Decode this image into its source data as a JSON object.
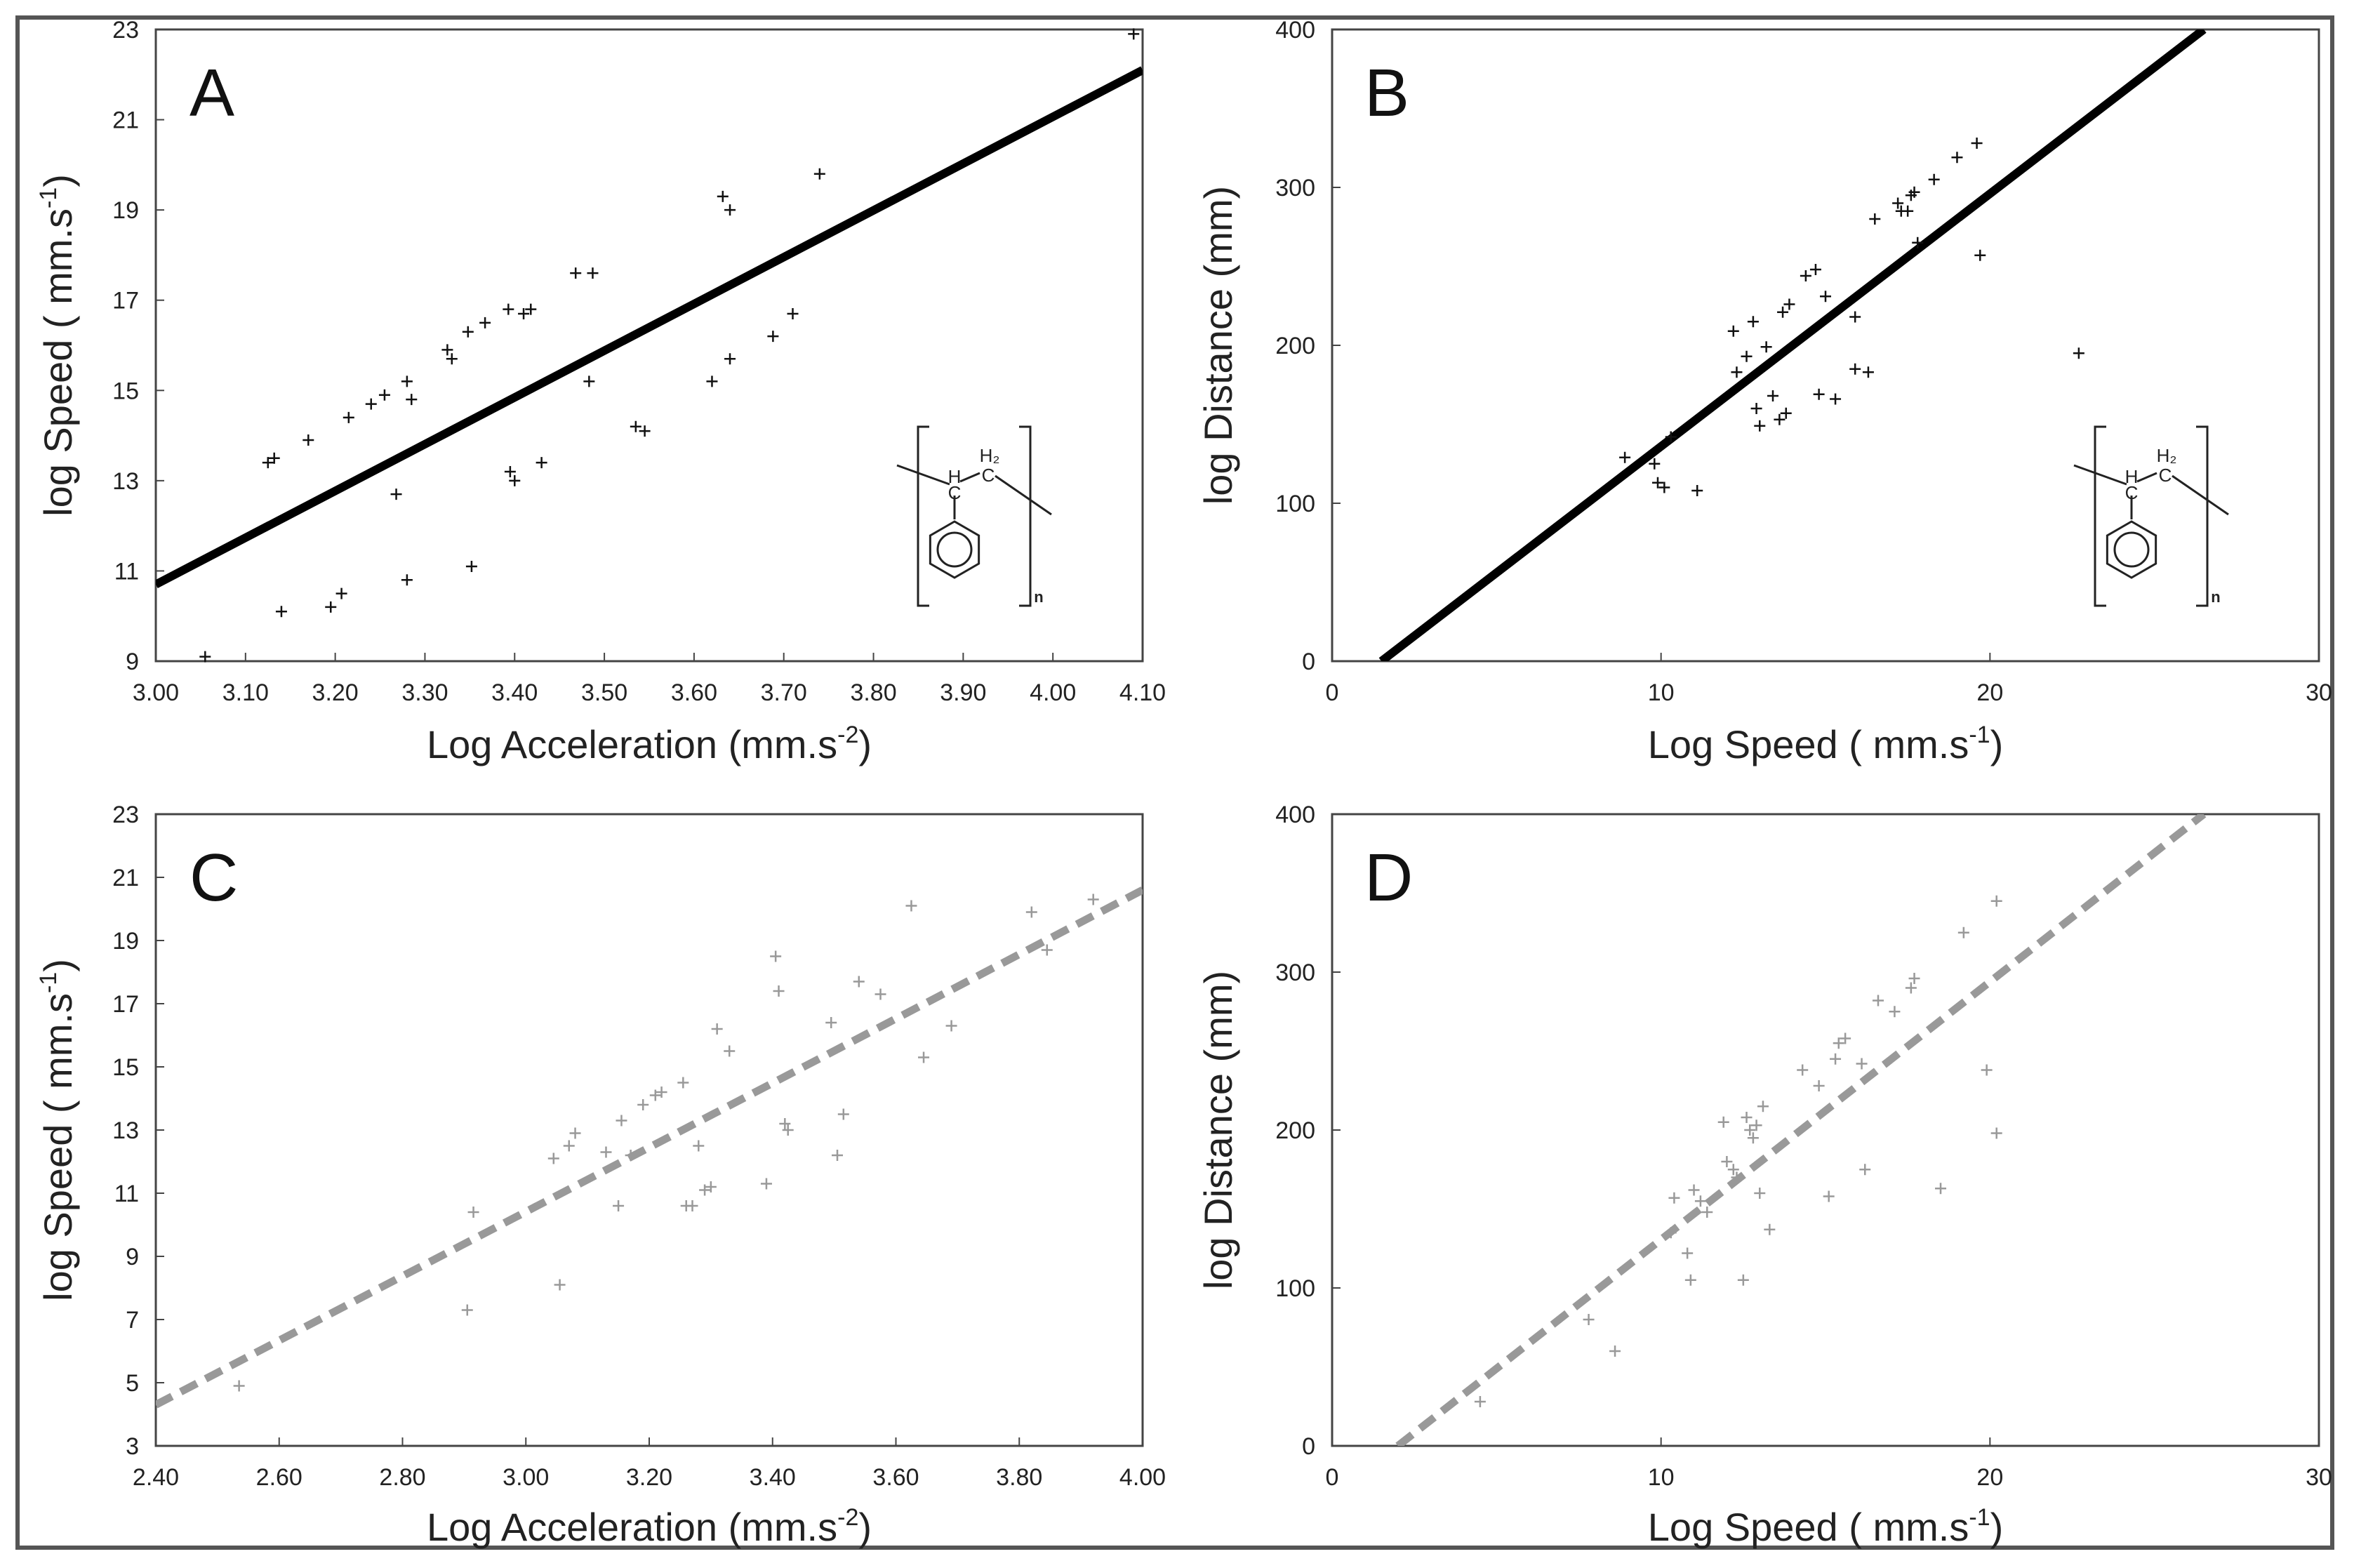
{
  "colors": {
    "solid_fit": "#000000",
    "dashed_fit": "#999999",
    "marker_dark": "#111111",
    "marker_light": "#999999",
    "frame": "#555555"
  },
  "chart_data": [
    {
      "panel": "A",
      "type": "scatter",
      "xlabel": "Log Acceleration (mm.s",
      "xlabel_sup": "-2",
      "xlabel_end": ")",
      "ylabel": "log Speed ( mm.s",
      "ylabel_sup": "-1",
      "ylabel_end": ")",
      "xlim": [
        3.0,
        4.1
      ],
      "ylim": [
        9,
        23
      ],
      "xticks": [
        "3.00",
        "3.10",
        "3.20",
        "3.30",
        "3.40",
        "3.50",
        "3.60",
        "3.70",
        "3.80",
        "3.90",
        "4.00",
        "4.10"
      ],
      "xtick_values": [
        3.0,
        3.1,
        3.2,
        3.3,
        3.4,
        3.5,
        3.6,
        3.7,
        3.8,
        3.9,
        4.0,
        4.1
      ],
      "yticks": [
        "9",
        "11",
        "13",
        "15",
        "17",
        "19",
        "21",
        "23"
      ],
      "ytick_values": [
        9,
        11,
        13,
        15,
        17,
        19,
        21,
        23
      ],
      "marker_color": "#111111",
      "fit": {
        "style": "solid",
        "color": "#000000",
        "x": [
          3.0,
          4.1
        ],
        "y": [
          10.7,
          22.1
        ]
      },
      "inset": "polystyrene",
      "points": [
        [
          3.055,
          9.1
        ],
        [
          3.125,
          13.4
        ],
        [
          3.132,
          13.5
        ],
        [
          3.14,
          10.1
        ],
        [
          3.17,
          13.9
        ],
        [
          3.195,
          10.2
        ],
        [
          3.207,
          10.5
        ],
        [
          3.215,
          14.4
        ],
        [
          3.24,
          14.7
        ],
        [
          3.255,
          14.9
        ],
        [
          3.268,
          12.7
        ],
        [
          3.28,
          15.2
        ],
        [
          3.285,
          14.8
        ],
        [
          3.28,
          10.8
        ],
        [
          3.325,
          15.9
        ],
        [
          3.33,
          15.7
        ],
        [
          3.348,
          16.3
        ],
        [
          3.352,
          11.1
        ],
        [
          3.367,
          16.5
        ],
        [
          3.393,
          16.8
        ],
        [
          3.395,
          13.2
        ],
        [
          3.4,
          13.0
        ],
        [
          3.41,
          16.7
        ],
        [
          3.418,
          16.8
        ],
        [
          3.43,
          13.4
        ],
        [
          3.468,
          17.6
        ],
        [
          3.483,
          15.2
        ],
        [
          3.487,
          17.6
        ],
        [
          3.535,
          14.2
        ],
        [
          3.545,
          14.1
        ],
        [
          3.62,
          15.2
        ],
        [
          3.632,
          19.3
        ],
        [
          3.64,
          19.0
        ],
        [
          3.64,
          15.7
        ],
        [
          3.688,
          16.2
        ],
        [
          3.71,
          16.7
        ],
        [
          3.74,
          19.8
        ],
        [
          4.09,
          22.9
        ]
      ]
    },
    {
      "panel": "B",
      "type": "scatter",
      "xlabel": "Log Speed ( mm.s",
      "xlabel_sup": "-1",
      "xlabel_end": ")",
      "ylabel": "log Distance (mm)",
      "ylabel_sup": "",
      "ylabel_end": "",
      "xlim": [
        0,
        30
      ],
      "ylim": [
        0,
        400
      ],
      "xticks": [
        "0",
        "10",
        "20",
        "30"
      ],
      "xtick_values": [
        0,
        10,
        20,
        30
      ],
      "yticks": [
        "0",
        "100",
        "200",
        "300",
        "400"
      ],
      "ytick_values": [
        0,
        100,
        200,
        300,
        400
      ],
      "marker_color": "#111111",
      "fit": {
        "style": "solid",
        "color": "#000000",
        "x": [
          1.5,
          26.5
        ],
        "y": [
          0,
          400
        ]
      },
      "inset": "polystyrene",
      "points": [
        [
          8.9,
          129
        ],
        [
          9.8,
          125
        ],
        [
          9.9,
          113
        ],
        [
          10.1,
          110
        ],
        [
          10.3,
          142
        ],
        [
          11.1,
          108
        ],
        [
          12.2,
          209
        ],
        [
          12.3,
          183
        ],
        [
          12.6,
          193
        ],
        [
          12.8,
          215
        ],
        [
          12.9,
          160
        ],
        [
          13.0,
          149
        ],
        [
          13.2,
          199
        ],
        [
          13.4,
          168
        ],
        [
          13.6,
          153
        ],
        [
          13.7,
          221
        ],
        [
          13.8,
          157
        ],
        [
          13.9,
          226
        ],
        [
          14.4,
          244
        ],
        [
          14.7,
          248
        ],
        [
          14.8,
          169
        ],
        [
          15.0,
          231
        ],
        [
          15.3,
          166
        ],
        [
          15.9,
          218
        ],
        [
          15.9,
          185
        ],
        [
          16.3,
          183
        ],
        [
          16.5,
          280
        ],
        [
          17.2,
          290
        ],
        [
          17.3,
          285
        ],
        [
          17.5,
          285
        ],
        [
          17.6,
          295
        ],
        [
          17.7,
          297
        ],
        [
          17.8,
          265
        ],
        [
          18.3,
          305
        ],
        [
          19.0,
          319
        ],
        [
          19.6,
          328
        ],
        [
          19.7,
          257
        ],
        [
          22.7,
          195
        ]
      ]
    },
    {
      "panel": "C",
      "type": "scatter",
      "xlabel": "Log Acceleration (mm.s",
      "xlabel_sup": "-2",
      "xlabel_end": ")",
      "ylabel": "log Speed ( mm.s",
      "ylabel_sup": "-1",
      "ylabel_end": ")",
      "xlim": [
        2.4,
        4.0
      ],
      "ylim": [
        3,
        23
      ],
      "xticks": [
        "2.40",
        "2.60",
        "2.80",
        "3.00",
        "3.20",
        "3.40",
        "3.60",
        "3.80",
        "4.00"
      ],
      "xtick_values": [
        2.4,
        2.6,
        2.8,
        3.0,
        3.2,
        3.4,
        3.6,
        3.8,
        4.0
      ],
      "yticks": [
        "3",
        "5",
        "7",
        "9",
        "11",
        "13",
        "15",
        "17",
        "19",
        "21",
        "23"
      ],
      "ytick_values": [
        3,
        5,
        7,
        9,
        11,
        13,
        15,
        17,
        19,
        21,
        23
      ],
      "marker_color": "#999999",
      "fit": {
        "style": "dashed",
        "color": "#999999",
        "x": [
          2.4,
          4.0
        ],
        "y": [
          4.3,
          20.6
        ]
      },
      "inset": "",
      "points": [
        [
          2.535,
          4.9
        ],
        [
          2.905,
          7.3
        ],
        [
          2.915,
          10.4
        ],
        [
          3.045,
          12.1
        ],
        [
          3.055,
          8.1
        ],
        [
          3.07,
          12.5
        ],
        [
          3.08,
          12.9
        ],
        [
          3.13,
          12.3
        ],
        [
          3.15,
          10.6
        ],
        [
          3.155,
          13.3
        ],
        [
          3.17,
          12.2
        ],
        [
          3.19,
          13.8
        ],
        [
          3.21,
          14.1
        ],
        [
          3.22,
          14.2
        ],
        [
          3.255,
          14.5
        ],
        [
          3.26,
          10.6
        ],
        [
          3.27,
          10.6
        ],
        [
          3.28,
          12.5
        ],
        [
          3.29,
          11.1
        ],
        [
          3.3,
          11.2
        ],
        [
          3.31,
          16.2
        ],
        [
          3.33,
          15.5
        ],
        [
          3.39,
          11.3
        ],
        [
          3.405,
          18.5
        ],
        [
          3.41,
          17.4
        ],
        [
          3.42,
          13.2
        ],
        [
          3.425,
          13.0
        ],
        [
          3.495,
          16.4
        ],
        [
          3.505,
          12.2
        ],
        [
          3.515,
          13.5
        ],
        [
          3.54,
          17.7
        ],
        [
          3.575,
          17.3
        ],
        [
          3.625,
          20.1
        ],
        [
          3.645,
          15.3
        ],
        [
          3.69,
          16.3
        ],
        [
          3.82,
          19.9
        ],
        [
          3.845,
          18.7
        ],
        [
          3.92,
          20.3
        ]
      ]
    },
    {
      "panel": "D",
      "type": "scatter",
      "xlabel": "Log Speed ( mm.s",
      "xlabel_sup": "-1",
      "xlabel_end": ")",
      "ylabel": "log Distance (mm)",
      "ylabel_sup": "",
      "ylabel_end": "",
      "xlim": [
        0,
        30
      ],
      "ylim": [
        0,
        400
      ],
      "xticks": [
        "0",
        "10",
        "20",
        "30"
      ],
      "xtick_values": [
        0,
        10,
        20,
        30
      ],
      "yticks": [
        "0",
        "100",
        "200",
        "300",
        "400"
      ],
      "ytick_values": [
        0,
        100,
        200,
        300,
        400
      ],
      "marker_color": "#999999",
      "fit": {
        "style": "dashed",
        "color": "#999999",
        "x": [
          2.0,
          26.5
        ],
        "y": [
          0,
          400
        ]
      },
      "inset": "",
      "points": [
        [
          4.5,
          28
        ],
        [
          7.8,
          80
        ],
        [
          8.6,
          60
        ],
        [
          10.3,
          135
        ],
        [
          10.4,
          157
        ],
        [
          10.8,
          122
        ],
        [
          10.9,
          105
        ],
        [
          11.0,
          162
        ],
        [
          11.2,
          155
        ],
        [
          11.4,
          148
        ],
        [
          11.9,
          205
        ],
        [
          12.0,
          180
        ],
        [
          12.2,
          175
        ],
        [
          12.3,
          170
        ],
        [
          12.5,
          105
        ],
        [
          12.6,
          208
        ],
        [
          12.7,
          200
        ],
        [
          12.8,
          195
        ],
        [
          12.9,
          203
        ],
        [
          13.0,
          160
        ],
        [
          13.1,
          215
        ],
        [
          13.3,
          137
        ],
        [
          14.3,
          238
        ],
        [
          14.8,
          228
        ],
        [
          15.1,
          158
        ],
        [
          15.3,
          245
        ],
        [
          15.4,
          255
        ],
        [
          15.6,
          258
        ],
        [
          16.1,
          242
        ],
        [
          16.2,
          175
        ],
        [
          16.6,
          282
        ],
        [
          17.1,
          275
        ],
        [
          17.6,
          290
        ],
        [
          17.7,
          296
        ],
        [
          18.5,
          163
        ],
        [
          19.2,
          325
        ],
        [
          19.9,
          238
        ],
        [
          20.2,
          345
        ],
        [
          20.2,
          198
        ]
      ]
    }
  ]
}
